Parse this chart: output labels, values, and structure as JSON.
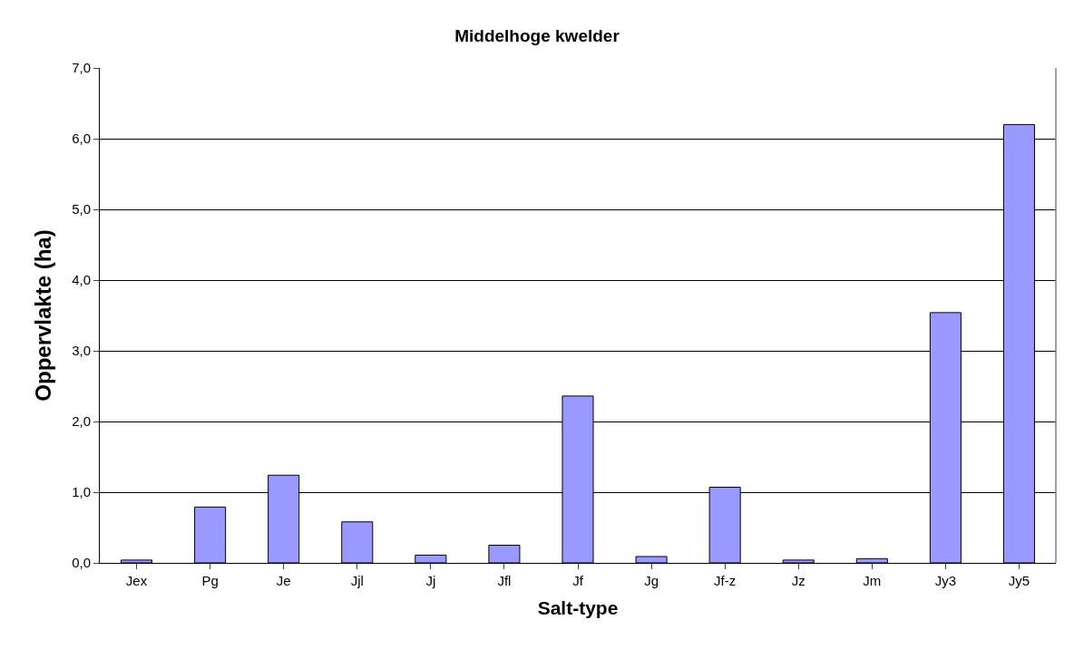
{
  "chart_data": {
    "type": "bar",
    "title": "Middelhoge kwelder",
    "xlabel": "Salt-type",
    "ylabel": "Oppervlakte (ha)",
    "categories": [
      "Jex",
      "Pg",
      "Je",
      "Jjl",
      "Jj",
      "Jfl",
      "Jf",
      "Jg",
      "Jf-z",
      "Jz",
      "Jm",
      "Jy3",
      "Jy5"
    ],
    "values": [
      0.04,
      0.79,
      1.24,
      0.58,
      0.11,
      0.25,
      2.36,
      0.09,
      1.07,
      0.04,
      0.06,
      3.54,
      6.2
    ],
    "color": "#9999ff",
    "ylim": [
      0,
      7
    ],
    "yticks": [
      {
        "value": 0,
        "label": "0,0"
      },
      {
        "value": 1,
        "label": "1,0"
      },
      {
        "value": 2,
        "label": "2,0"
      },
      {
        "value": 3,
        "label": "3,0"
      },
      {
        "value": 4,
        "label": "4,0"
      },
      {
        "value": 5,
        "label": "5,0"
      },
      {
        "value": 6,
        "label": "6,0"
      },
      {
        "value": 7,
        "label": "7,0"
      }
    ],
    "grid": "y",
    "legend": false
  }
}
